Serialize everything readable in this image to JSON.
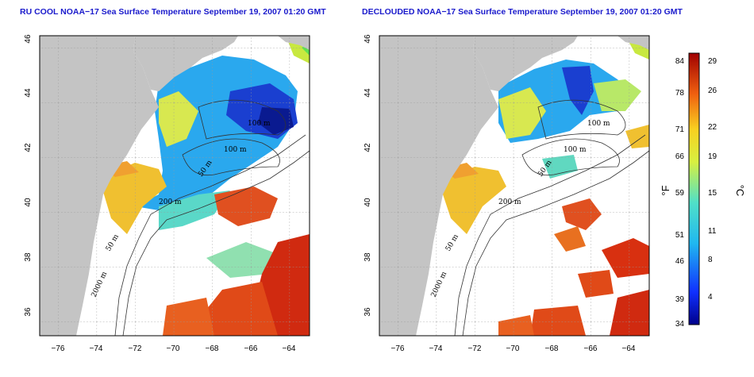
{
  "maps": [
    {
      "title": "RU COOL NOAA−17 Sea Surface Temperature September 19, 2007 01:20 GMT",
      "contour_labels": [
        "100 m",
        "100 m",
        "50 m",
        "200 m",
        "50 m",
        "2000 m"
      ]
    },
    {
      "title": "DECLOUDED NOAA−17 Sea Surface Temperature September 19, 2007 01:20 GMT",
      "contour_labels": [
        "100 m",
        "100 m",
        "50 m",
        "200 m",
        "50 m",
        "2000 m"
      ]
    }
  ],
  "axes": {
    "x_ticks": [
      "−76",
      "−74",
      "−72",
      "−70",
      "−68",
      "−66",
      "−64"
    ],
    "y_ticks": [
      "36",
      "38",
      "40",
      "42",
      "44",
      "46"
    ]
  },
  "colorbar": {
    "f_ticks": [
      "84",
      "78",
      "71",
      "66",
      "59",
      "51",
      "46",
      "39",
      "34"
    ],
    "c_ticks": [
      "29",
      "26",
      "22",
      "19",
      "15",
      "11",
      "8",
      "4"
    ],
    "f_label": "°F",
    "c_label": "°C"
  },
  "colors": {
    "land": "#c4c4c4",
    "cold": "#1a3fd0",
    "cool": "#2aa8ee",
    "mid": "#7ed9c0",
    "warm": "#e8d44a",
    "hot": "#e0401a"
  }
}
